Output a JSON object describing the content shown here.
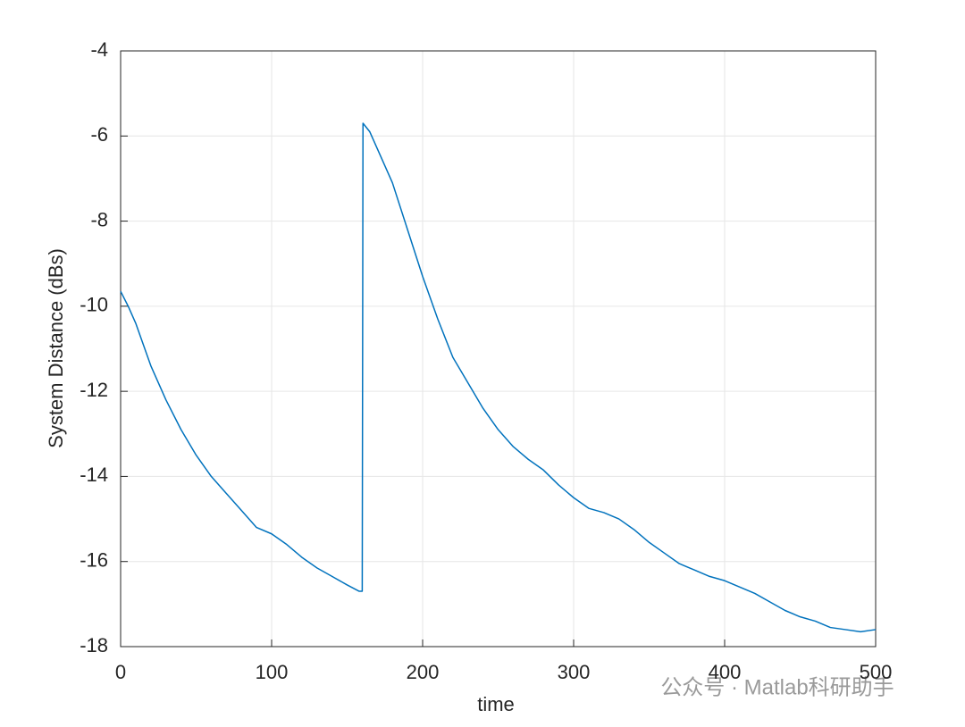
{
  "chart_data": {
    "type": "line",
    "xlabel": "time",
    "ylabel": "System Distance (dBs)",
    "xlim": [
      0,
      500
    ],
    "xticks": [
      0,
      100,
      200,
      300,
      400,
      500
    ],
    "ylim": [
      -18,
      -4
    ],
    "yticks": [
      -18,
      -16,
      -14,
      -12,
      -10,
      -8,
      -6,
      -4
    ],
    "grid": true,
    "series": [
      {
        "color": "#0072bd",
        "x": [
          0,
          5,
          10,
          20,
          30,
          40,
          50,
          60,
          70,
          80,
          90,
          100,
          110,
          120,
          130,
          140,
          150,
          158,
          160,
          160.5,
          165,
          170,
          180,
          190,
          200,
          210,
          220,
          230,
          240,
          250,
          260,
          270,
          280,
          290,
          300,
          310,
          320,
          330,
          340,
          350,
          360,
          370,
          380,
          390,
          400,
          410,
          420,
          430,
          440,
          450,
          460,
          470,
          480,
          490,
          500
        ],
        "values": [
          -9.65,
          -10.0,
          -10.4,
          -11.4,
          -12.2,
          -12.9,
          -13.5,
          -14.0,
          -14.4,
          -14.8,
          -15.2,
          -15.35,
          -15.6,
          -15.9,
          -16.15,
          -16.35,
          -16.55,
          -16.7,
          -16.7,
          -5.7,
          -5.9,
          -6.3,
          -7.1,
          -8.2,
          -9.3,
          -10.3,
          -11.2,
          -11.8,
          -12.4,
          -12.9,
          -13.3,
          -13.6,
          -13.85,
          -14.2,
          -14.5,
          -14.75,
          -14.85,
          -15.0,
          -15.25,
          -15.55,
          -15.8,
          -16.05,
          -16.2,
          -16.35,
          -16.45,
          -16.6,
          -16.75,
          -16.95,
          -17.15,
          -17.3,
          -17.4,
          -17.55,
          -17.6,
          -17.65,
          -17.6
        ]
      }
    ],
    "watermark": "公众号 · Matlab科研助手"
  }
}
